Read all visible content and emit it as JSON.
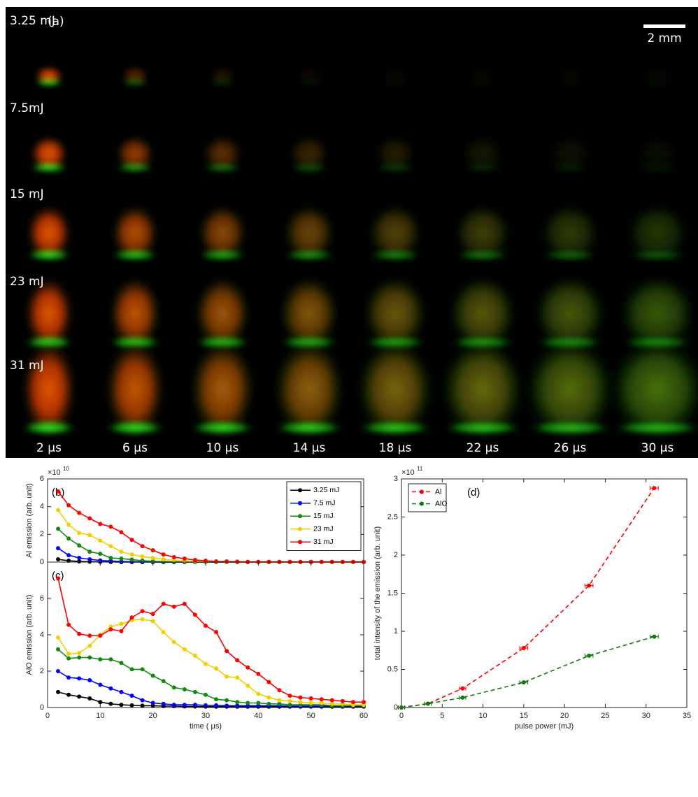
{
  "panel_a": {
    "label": "(a)",
    "scale_bar": "2 mm",
    "rows": [
      "3.25 mJ",
      "7.5mJ",
      "15 mJ",
      "23 mJ",
      "31 mJ"
    ],
    "columns": [
      "2 µs",
      "6 µs",
      "10 µs",
      "14 µs",
      "18 µs",
      "22 µs",
      "26 µs",
      "30 µs"
    ]
  },
  "chart_data": [
    {
      "type": "line",
      "title": "(b)",
      "ylabel": "Al emission (arb. unit)",
      "y_multiplier": "×10",
      "y_exponent": "10",
      "x": [
        2,
        4,
        6,
        8,
        10,
        12,
        14,
        16,
        18,
        20,
        22,
        24,
        26,
        28,
        30,
        32,
        34,
        36,
        38,
        40,
        42,
        44,
        46,
        48,
        50,
        52,
        54,
        56,
        58,
        60
      ],
      "xlim": [
        0,
        60
      ],
      "ylim": [
        0,
        6
      ],
      "yticks": [
        0,
        2,
        4,
        6
      ],
      "legend": "upper right",
      "series": [
        {
          "name": "3.25 mJ",
          "color": "#000000",
          "values": [
            0.2,
            0.1,
            0.05,
            0.03,
            0.02,
            0.01,
            0,
            0,
            0,
            0,
            0,
            0,
            0,
            0,
            0,
            0,
            0,
            0,
            0,
            0,
            0,
            0,
            0,
            0,
            0,
            0,
            0,
            0,
            0,
            0
          ]
        },
        {
          "name": "7.5 mJ",
          "color": "#0000ff",
          "values": [
            1.0,
            0.5,
            0.3,
            0.2,
            0.12,
            0.08,
            0.05,
            0.03,
            0.02,
            0.01,
            0,
            0,
            0,
            0,
            0,
            0,
            0,
            0,
            0,
            0,
            0,
            0,
            0,
            0,
            0,
            0,
            0,
            0,
            0,
            0
          ]
        },
        {
          "name": "15 mJ",
          "color": "#108a10",
          "values": [
            2.4,
            1.7,
            1.2,
            0.75,
            0.6,
            0.3,
            0.25,
            0.18,
            0.1,
            0.06,
            0.04,
            0.02,
            0.01,
            0,
            0,
            0,
            0,
            0,
            0,
            0,
            0,
            0,
            0,
            0,
            0,
            0,
            0,
            0,
            0,
            0
          ]
        },
        {
          "name": "23 mJ",
          "color": "#f2d000",
          "values": [
            3.75,
            2.7,
            2.1,
            1.95,
            1.55,
            1.15,
            0.75,
            0.55,
            0.4,
            0.3,
            0.2,
            0.12,
            0.08,
            0.05,
            0.03,
            0.02,
            0.01,
            0.01,
            0.01,
            0,
            0,
            0,
            0,
            0,
            0,
            0,
            0,
            0,
            0,
            0
          ]
        },
        {
          "name": "31 mJ",
          "color": "#ff0000",
          "values": [
            5.1,
            4.1,
            3.55,
            3.15,
            2.75,
            2.55,
            2.15,
            1.6,
            1.15,
            0.85,
            0.55,
            0.35,
            0.25,
            0.15,
            0.1,
            0.05,
            0.05,
            0.03,
            0.02,
            0.02,
            0.02,
            0.02,
            0.02,
            0.02,
            0.02,
            0.02,
            0.02,
            0.02,
            0.02,
            0.02
          ]
        }
      ]
    },
    {
      "type": "line",
      "title": "(c)",
      "ylabel": "AlO emission (arb. unit)",
      "xlabel": "time ( μs)",
      "x": [
        2,
        4,
        6,
        8,
        10,
        12,
        14,
        16,
        18,
        20,
        22,
        24,
        26,
        28,
        30,
        32,
        34,
        36,
        38,
        40,
        42,
        44,
        46,
        48,
        50,
        52,
        54,
        56,
        58,
        60
      ],
      "xlim": [
        0,
        60
      ],
      "xticks": [
        0,
        10,
        20,
        30,
        40,
        50,
        60
      ],
      "ylim": [
        0,
        8
      ],
      "yticks": [
        0,
        2,
        4,
        6
      ],
      "series": [
        {
          "name": "3.25 mJ",
          "color": "#000000",
          "values": [
            0.85,
            0.7,
            0.6,
            0.5,
            0.3,
            0.2,
            0.15,
            0.12,
            0.1,
            0.1,
            0.08,
            0.08,
            0.06,
            0.06,
            0.05,
            0.05,
            0.05,
            0.05,
            0.05,
            0.05,
            0.05,
            0.05,
            0.05,
            0.05,
            0.05,
            0.05,
            0.05,
            0.05,
            0.05,
            0.05
          ]
        },
        {
          "name": "7.5 mJ",
          "color": "#0000ff",
          "values": [
            2.0,
            1.65,
            1.6,
            1.5,
            1.25,
            1.05,
            0.85,
            0.65,
            0.4,
            0.25,
            0.2,
            0.15,
            0.15,
            0.15,
            0.12,
            0.12,
            0.1,
            0.1,
            0.1,
            0.1,
            0.1,
            0.1,
            0.08,
            0.08,
            0.08,
            0.08,
            0.08,
            0.08,
            0.08,
            0.08
          ]
        },
        {
          "name": "15 mJ",
          "color": "#108a10",
          "values": [
            3.2,
            2.7,
            2.75,
            2.75,
            2.65,
            2.65,
            2.45,
            2.1,
            2.1,
            1.75,
            1.45,
            1.1,
            1.0,
            0.85,
            0.7,
            0.45,
            0.4,
            0.3,
            0.25,
            0.25,
            0.2,
            0.2,
            0.15,
            0.15,
            0.15,
            0.15,
            0.1,
            0.1,
            0.1,
            0.1
          ]
        },
        {
          "name": "23 mJ",
          "color": "#f2d000",
          "values": [
            3.85,
            2.95,
            3.0,
            3.4,
            4.0,
            4.45,
            4.6,
            4.8,
            4.85,
            4.75,
            4.15,
            3.6,
            3.2,
            2.85,
            2.4,
            2.15,
            1.7,
            1.65,
            1.2,
            0.75,
            0.55,
            0.4,
            0.35,
            0.3,
            0.25,
            0.25,
            0.2,
            0.2,
            0.15,
            0.15
          ]
        },
        {
          "name": "31 mJ",
          "color": "#ff0000",
          "values": [
            7.1,
            4.55,
            4.05,
            3.95,
            3.95,
            4.3,
            4.2,
            4.95,
            5.3,
            5.15,
            5.7,
            5.55,
            5.7,
            5.1,
            4.5,
            4.15,
            3.1,
            2.6,
            2.2,
            1.85,
            1.4,
            0.95,
            0.65,
            0.55,
            0.5,
            0.45,
            0.4,
            0.35,
            0.3,
            0.3
          ]
        }
      ]
    },
    {
      "type": "errorline",
      "title": "(d)",
      "ylabel": "total intensity of the emission (arb. unit)",
      "xlabel": "pulse power (mJ)",
      "y_multiplier": "×10",
      "y_exponent": "11",
      "x": [
        0,
        3.25,
        7.5,
        15,
        23,
        31
      ],
      "xlim": [
        0,
        35
      ],
      "xticks": [
        0,
        5,
        10,
        15,
        20,
        25,
        30,
        35
      ],
      "ylim": [
        0,
        3
      ],
      "yticks": [
        0,
        0.5,
        1,
        1.5,
        2,
        2.5,
        3
      ],
      "legend": "upper left",
      "linestyle": "dashed",
      "series": [
        {
          "name": "Al",
          "color": "#ff0000",
          "values": [
            0,
            0.05,
            0.25,
            0.78,
            1.6,
            2.88
          ],
          "x_error": [
            0.4,
            0.4,
            0.4,
            0.5,
            0.5,
            0.5
          ]
        },
        {
          "name": "AlO",
          "color": "#107a10",
          "values": [
            0,
            0.05,
            0.13,
            0.33,
            0.68,
            0.93
          ],
          "x_error": [
            0.4,
            0.4,
            0.4,
            0.5,
            0.5,
            0.5
          ]
        }
      ]
    }
  ]
}
